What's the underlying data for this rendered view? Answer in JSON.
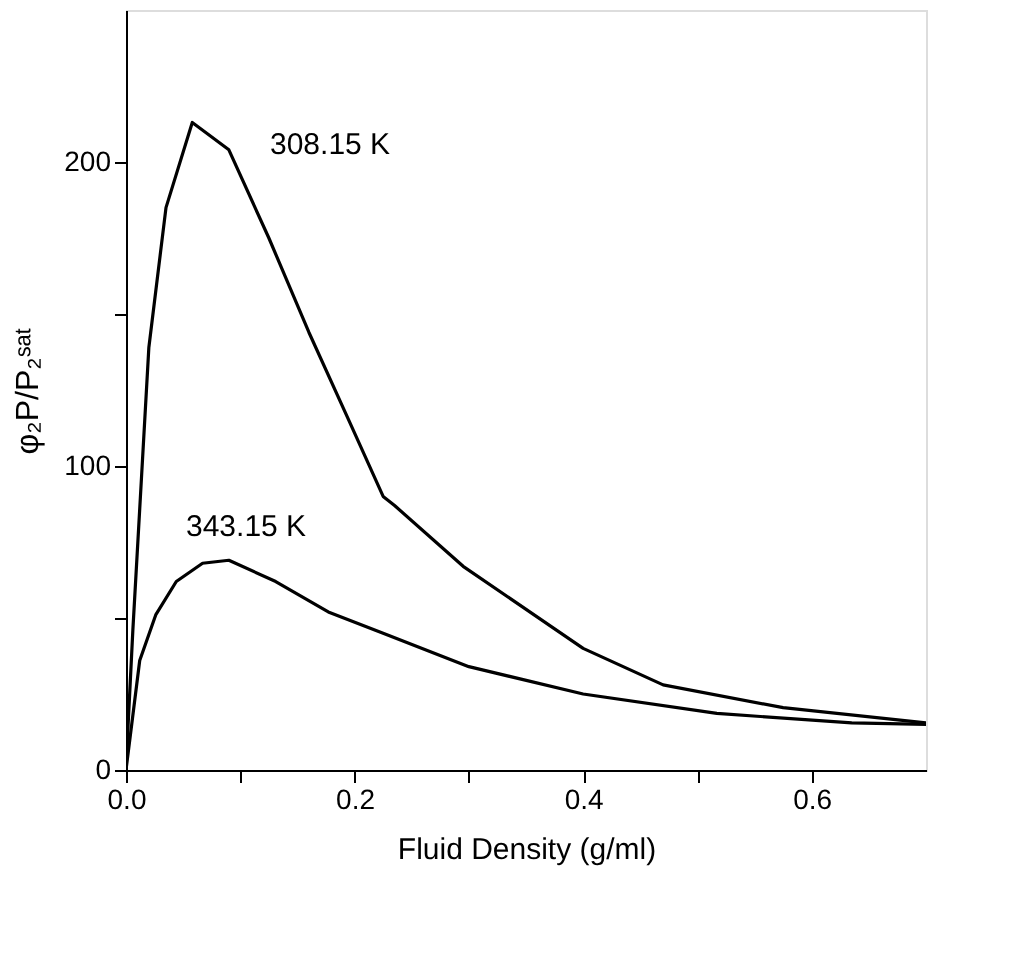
{
  "chart_data": {
    "type": "line",
    "xlabel": "Fluid Density (g/ml)",
    "ylabel": "φ₂P/P₂ˢᵃᵗ",
    "xlim": [
      0,
      0.7
    ],
    "ylim": [
      0,
      250
    ],
    "xticks": [
      {
        "value": 0,
        "label": "0.0"
      },
      {
        "value": 0.1,
        "label": null
      },
      0.2,
      {
        "value": 0.3,
        "label": null
      },
      0.4,
      {
        "value": 0.5,
        "label": null
      },
      0.6
    ],
    "yticks": [
      0,
      {
        "value": 50,
        "label": null
      },
      100,
      {
        "value": 150,
        "label": null
      },
      200
    ],
    "grid": false,
    "legend": false,
    "marker": "none",
    "line_style": "solid",
    "annotations": [
      "308.15 K",
      "343.15 K"
    ],
    "series": [
      {
        "color": "#000000",
        "x": [
          0,
          0.006,
          0.02,
          0.035,
          0.058,
          0.09,
          0.125,
          0.16,
          0.195,
          0.225,
          0.235,
          0.295,
          0.4,
          0.47,
          0.575,
          0.7
        ],
        "values": [
          1,
          46,
          139,
          185,
          213,
          204,
          175,
          144,
          115,
          90,
          87,
          67,
          40,
          28,
          20.5,
          15.5
        ]
      },
      {
        "color": "#000000",
        "x": [
          0,
          0.012,
          0.026,
          0.044,
          0.067,
          0.09,
          0.131,
          0.177,
          0.225,
          0.3,
          0.4,
          0.517,
          0.635,
          0.7
        ],
        "values": [
          0,
          36,
          51,
          62,
          68,
          69,
          62,
          52,
          45,
          34,
          25,
          18.6,
          15.5,
          15
        ]
      }
    ]
  }
}
